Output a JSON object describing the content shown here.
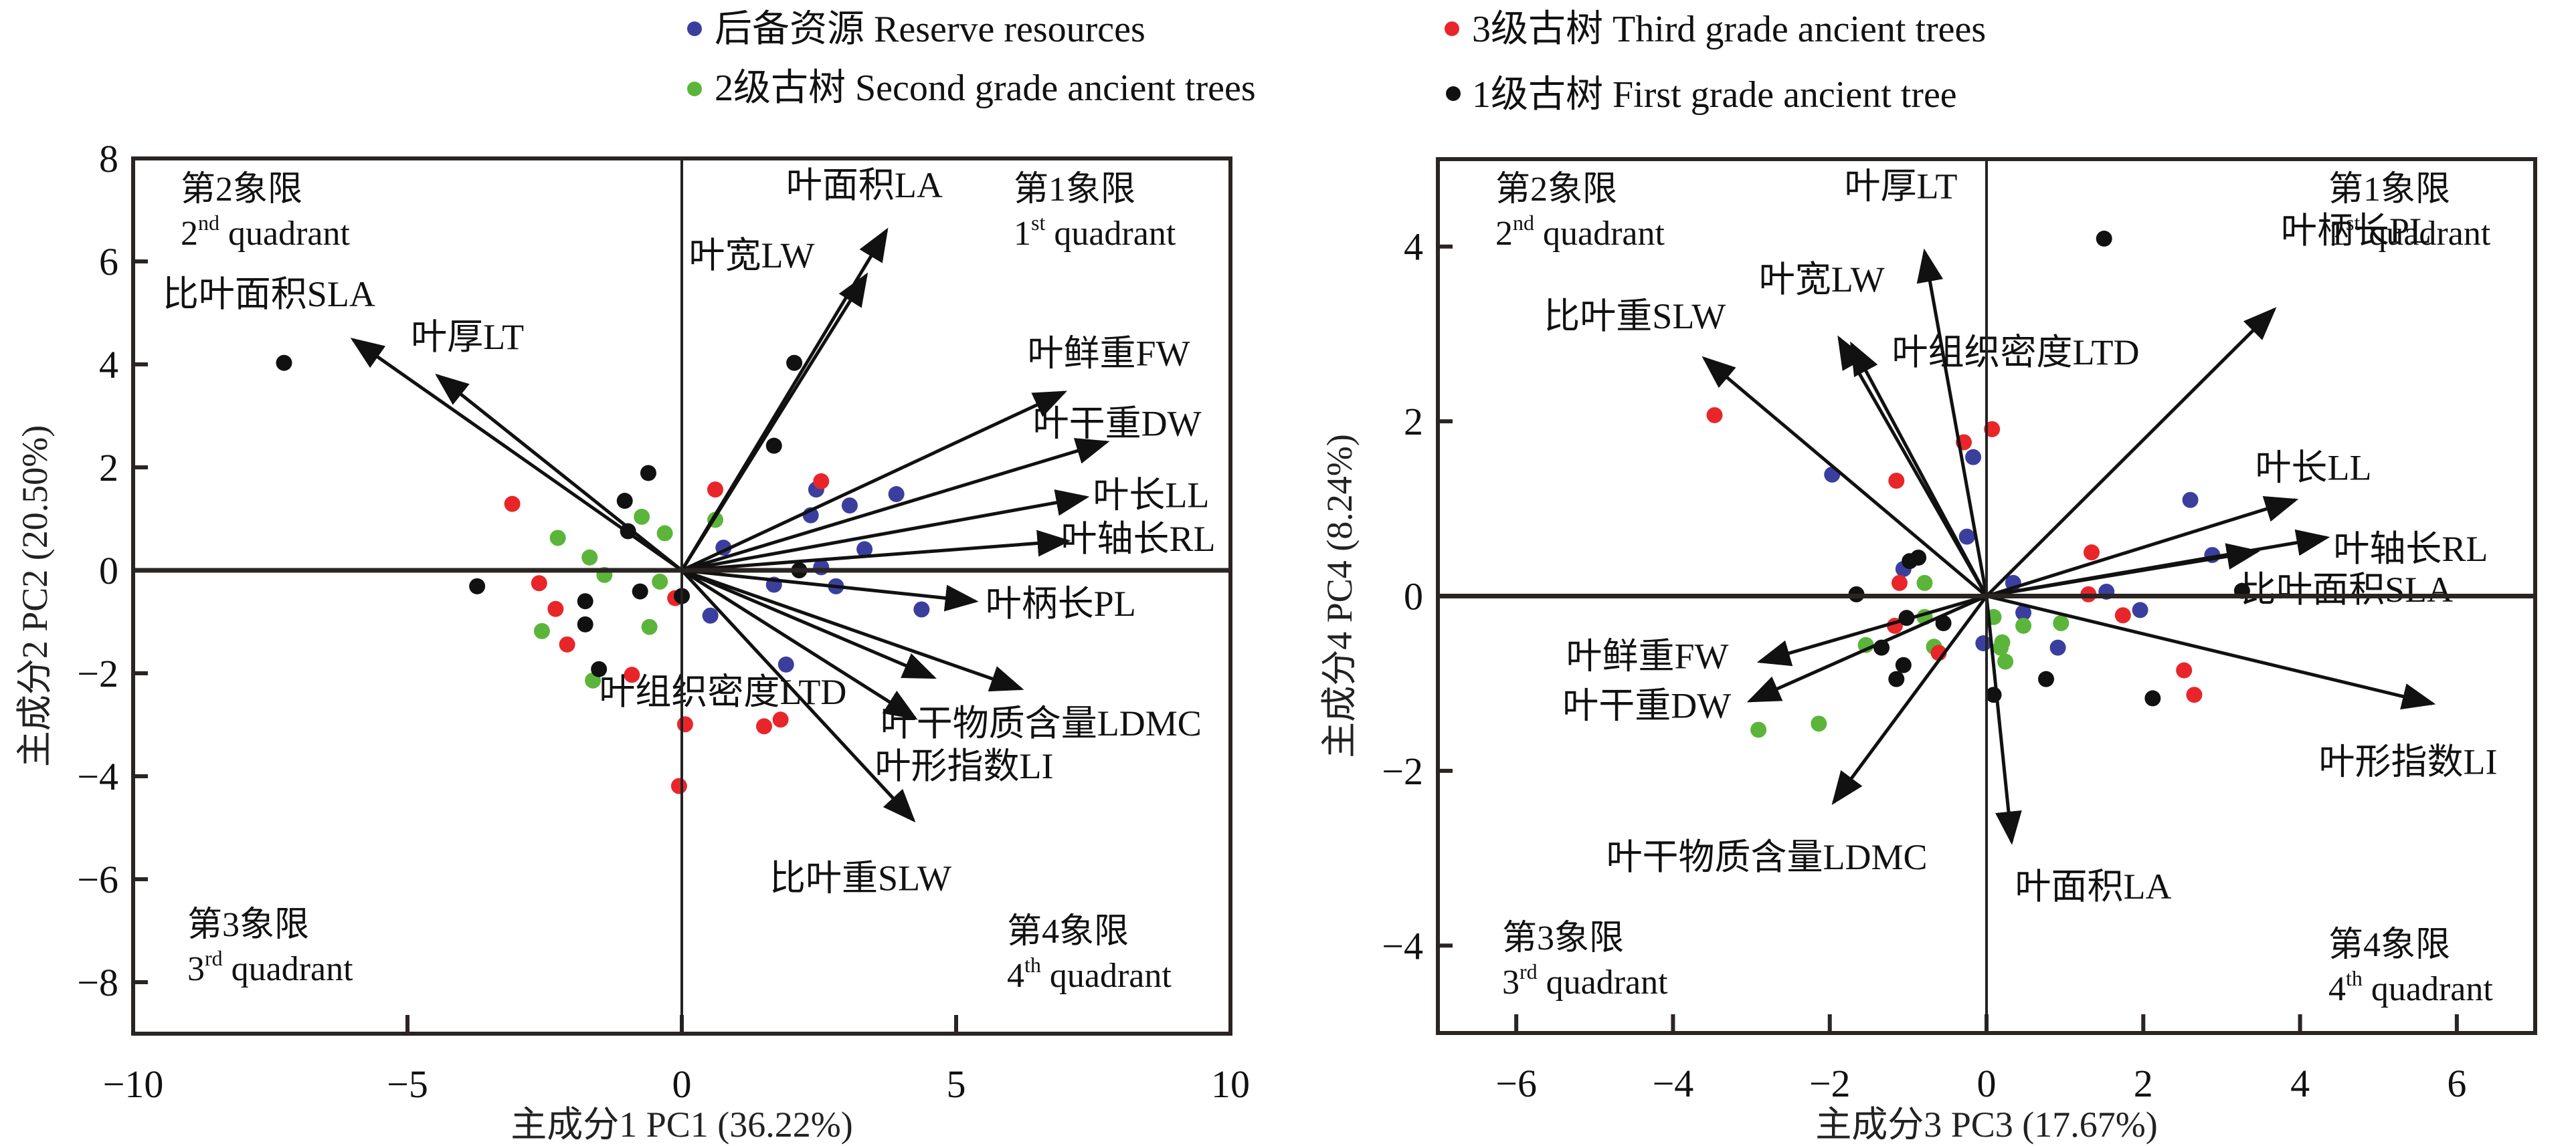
{
  "legend": {
    "items": [
      {
        "label": "后备资源 Reserve resources",
        "color": "#3a3f9e",
        "key": "reserve"
      },
      {
        "label": "2级古树 Second grade ancient trees",
        "color": "#5bb53a",
        "key": "second"
      },
      {
        "label": "3级古树 Third grade ancient trees",
        "color": "#e8262a",
        "key": "third"
      },
      {
        "label": "1级古树 First grade ancient tree",
        "color": "#111111",
        "key": "first"
      }
    ]
  },
  "chart_data": [
    {
      "type": "scatter",
      "subtype": "pca-biplot",
      "title": "",
      "xlabel": "主成分1 PC1 (36.22%)",
      "ylabel": "主成分2 PC2 (20.50%)",
      "xlim": [
        -10,
        10
      ],
      "ylim": [
        -9,
        8
      ],
      "xticks": [
        -10,
        -5,
        0,
        5,
        10
      ],
      "xtick_labels": [
        "−10",
        "−5",
        "0",
        "5",
        "10"
      ],
      "yticks": [
        -8,
        -6,
        -4,
        -2,
        0,
        2,
        4,
        6,
        8
      ],
      "ytick_labels": [
        "−8",
        "−6",
        "−4",
        "−2",
        "0",
        "2",
        "4",
        "6",
        "8"
      ],
      "grid": false,
      "quadrant_labels": [
        {
          "q": 2,
          "cn": "第2象限",
          "num": "2",
          "sup": "nd",
          "en": " quadrant",
          "pos": "top-left"
        },
        {
          "q": 1,
          "cn": "第1象限",
          "num": "1",
          "sup": "st",
          "en": " quadrant",
          "pos": "top-right"
        },
        {
          "q": 3,
          "cn": "第3象限",
          "num": "3",
          "sup": "rd",
          "en": " quadrant",
          "pos": "bottom-left"
        },
        {
          "q": 4,
          "cn": "第4象限",
          "num": "4",
          "sup": "th",
          "en": " quadrant",
          "pos": "bottom-right"
        }
      ],
      "vectors": [
        {
          "label": "叶面积LA",
          "x": 3.73,
          "y": 6.6
        },
        {
          "label": "叶宽LW",
          "x": 3.36,
          "y": 5.73
        },
        {
          "label": "比叶面积SLA",
          "x": -5.99,
          "y": 4.48
        },
        {
          "label": "叶厚LT",
          "x": -4.45,
          "y": 3.78
        },
        {
          "label": "叶鲜重FW",
          "x": 6.97,
          "y": 3.46
        },
        {
          "label": "叶干重DW",
          "x": 7.74,
          "y": 2.49
        },
        {
          "label": "叶长LL",
          "x": 7.37,
          "y": 1.42
        },
        {
          "label": "叶轴长RL",
          "x": 7.03,
          "y": 0.57
        },
        {
          "label": "叶柄长PL",
          "x": 5.35,
          "y": -0.6
        },
        {
          "label": "叶组织密度LTD",
          "x": 4.59,
          "y": -2.08
        },
        {
          "label": "叶干物质含量LDMC",
          "x": 6.18,
          "y": -2.3
        },
        {
          "label": "叶形指数LI",
          "x": 4.25,
          "y": -2.87
        },
        {
          "label": "比叶重SLW",
          "x": 4.22,
          "y": -4.85
        }
      ],
      "series": [
        {
          "name": "后备资源 Reserve resources",
          "key": "reserve",
          "points": [
            [
              1.9,
              -1.83
            ],
            [
              0.76,
              0.44
            ],
            [
              2.45,
              1.57
            ],
            [
              3.06,
              1.26
            ],
            [
              3.91,
              1.48
            ],
            [
              2.35,
              1.07
            ],
            [
              3.33,
              0.41
            ],
            [
              2.54,
              0.06
            ],
            [
              1.68,
              -0.28
            ],
            [
              2.81,
              -0.31
            ],
            [
              4.37,
              -0.76
            ],
            [
              0.52,
              -0.88
            ]
          ]
        },
        {
          "name": "2级古树 Second grade ancient trees",
          "key": "second",
          "points": [
            [
              -0.73,
              1.04
            ],
            [
              -0.31,
              0.72
            ],
            [
              -2.26,
              0.63
            ],
            [
              -1.68,
              0.25
            ],
            [
              -1.41,
              -0.09
            ],
            [
              -0.4,
              -0.22
            ],
            [
              -2.55,
              -1.18
            ],
            [
              -0.59,
              -1.1
            ],
            [
              -1.62,
              -2.14
            ],
            [
              0.61,
              0.98
            ]
          ]
        },
        {
          "name": "3级古树 Third grade ancient trees",
          "key": "third",
          "points": [
            [
              -3.09,
              1.29
            ],
            [
              -2.6,
              -0.25
            ],
            [
              -0.12,
              -0.54
            ],
            [
              -2.3,
              -0.75
            ],
            [
              -2.09,
              -1.44
            ],
            [
              -0.91,
              -2.03
            ],
            [
              0.06,
              -2.99
            ],
            [
              1.5,
              -3.03
            ],
            [
              1.8,
              -2.9
            ],
            [
              -0.05,
              -4.19
            ],
            [
              0.61,
              1.57
            ],
            [
              2.54,
              1.73
            ]
          ]
        },
        {
          "name": "1级古树 First grade ancient tree",
          "key": "first",
          "points": [
            [
              -7.25,
              4.03
            ],
            [
              -0.61,
              1.89
            ],
            [
              -1.04,
              1.35
            ],
            [
              -0.98,
              0.76
            ],
            [
              -3.73,
              -0.31
            ],
            [
              -0.76,
              -0.41
            ],
            [
              -1.76,
              -1.05
            ],
            [
              -1.76,
              -0.6
            ],
            [
              -1.51,
              -1.92
            ],
            [
              1.68,
              2.42
            ],
            [
              2.05,
              4.03
            ],
            [
              2.14,
              0.0
            ],
            [
              0.0,
              -0.5
            ]
          ]
        }
      ]
    },
    {
      "type": "scatter",
      "subtype": "pca-biplot",
      "title": "",
      "xlabel": "主成分3 PC3 (17.67%)",
      "ylabel": "主成分4 PC4 (8.24%)",
      "xlim": [
        -7,
        7
      ],
      "ylim": [
        -5,
        5
      ],
      "xticks": [
        -6,
        -4,
        -2,
        0,
        2,
        4,
        6
      ],
      "xtick_labels": [
        "−6",
        "−4",
        "−2",
        "0",
        "2",
        "4",
        "6"
      ],
      "yticks": [
        -4,
        -2,
        0,
        2,
        4
      ],
      "ytick_labels": [
        "−4",
        "−2",
        "0",
        "2",
        "4"
      ],
      "grid": false,
      "quadrant_labels": [
        {
          "q": 2,
          "cn": "第2象限",
          "num": "2",
          "sup": "nd",
          "en": " quadrant",
          "pos": "top-left"
        },
        {
          "q": 1,
          "cn": "第1象限",
          "num": "1",
          "sup": "st",
          "en": " quadrant",
          "pos": "top-right"
        },
        {
          "q": 3,
          "cn": "第3象限",
          "num": "3",
          "sup": "rd",
          "en": " quadrant",
          "pos": "bottom-left"
        },
        {
          "q": 4,
          "cn": "第4象限",
          "num": "4",
          "sup": "th",
          "en": " quadrant",
          "pos": "bottom-right"
        }
      ],
      "vectors": [
        {
          "label": "叶厚LT",
          "x": -0.79,
          "y": 3.94
        },
        {
          "label": "叶宽LW",
          "x": -1.88,
          "y": 2.95
        },
        {
          "label": "叶组织密度LTD",
          "x": -1.72,
          "y": 2.88
        },
        {
          "label": "比叶重SLW",
          "x": -3.6,
          "y": 2.72
        },
        {
          "label": "叶柄长PL",
          "x": 3.67,
          "y": 3.28
        },
        {
          "label": "叶长LL",
          "x": 3.94,
          "y": 1.1
        },
        {
          "label": "叶轴长RL",
          "x": 4.34,
          "y": 0.67
        },
        {
          "label": "比叶面积SLA",
          "x": 3.45,
          "y": 0.51
        },
        {
          "label": "叶鲜重FW",
          "x": -2.89,
          "y": -0.75
        },
        {
          "label": "叶干重DW",
          "x": -3.02,
          "y": -1.2
        },
        {
          "label": "叶干物质含量LDMC",
          "x": -1.95,
          "y": -2.36
        },
        {
          "label": "叶面积LA",
          "x": 0.32,
          "y": -2.81
        },
        {
          "label": "叶形指数LI",
          "x": 5.69,
          "y": -1.23
        }
      ],
      "series": [
        {
          "name": "后备资源 Reserve resources",
          "key": "reserve",
          "points": [
            [
              -0.17,
              1.59
            ],
            [
              -1.97,
              1.39
            ],
            [
              2.6,
              1.1
            ],
            [
              -0.25,
              0.68
            ],
            [
              2.88,
              0.47
            ],
            [
              -1.06,
              0.31
            ],
            [
              0.34,
              0.15
            ],
            [
              1.53,
              0.05
            ],
            [
              0.47,
              -0.19
            ],
            [
              1.96,
              -0.16
            ],
            [
              -0.04,
              -0.54
            ],
            [
              0.91,
              -0.59
            ]
          ]
        },
        {
          "name": "2级古树 Second grade ancient trees",
          "key": "second",
          "points": [
            [
              -0.79,
              0.15
            ],
            [
              0.09,
              -0.24
            ],
            [
              0.47,
              -0.34
            ],
            [
              0.95,
              -0.31
            ],
            [
              -0.79,
              -0.24
            ],
            [
              -1.54,
              -0.56
            ],
            [
              -0.67,
              -0.58
            ],
            [
              0.2,
              -0.53
            ],
            [
              0.18,
              -0.59
            ],
            [
              0.24,
              -0.75
            ],
            [
              -2.14,
              -1.46
            ],
            [
              -2.91,
              -1.53
            ]
          ]
        },
        {
          "name": "3级古树 Third grade ancient trees",
          "key": "third",
          "points": [
            [
              0.07,
              1.91
            ],
            [
              -0.29,
              1.76
            ],
            [
              -1.15,
              1.32
            ],
            [
              1.34,
              0.5
            ],
            [
              -1.11,
              0.15
            ],
            [
              1.3,
              0.02
            ],
            [
              1.74,
              -0.22
            ],
            [
              -1.17,
              -0.34
            ],
            [
              -0.61,
              -0.65
            ],
            [
              2.52,
              -0.85
            ],
            [
              2.65,
              -1.13
            ],
            [
              -3.47,
              2.07
            ]
          ]
        },
        {
          "name": "1级古树 First grade ancient tree",
          "key": "first",
          "points": [
            [
              1.5,
              4.09
            ],
            [
              -0.87,
              0.44
            ],
            [
              -0.98,
              0.4
            ],
            [
              -1.66,
              0.02
            ],
            [
              3.26,
              0.06
            ],
            [
              -1.02,
              -0.25
            ],
            [
              -0.55,
              -0.31
            ],
            [
              -1.34,
              -0.59
            ],
            [
              -1.06,
              -0.79
            ],
            [
              -1.15,
              -0.95
            ],
            [
              0.76,
              -0.95
            ],
            [
              2.12,
              -1.17
            ],
            [
              0.09,
              -1.13
            ]
          ]
        }
      ]
    }
  ]
}
